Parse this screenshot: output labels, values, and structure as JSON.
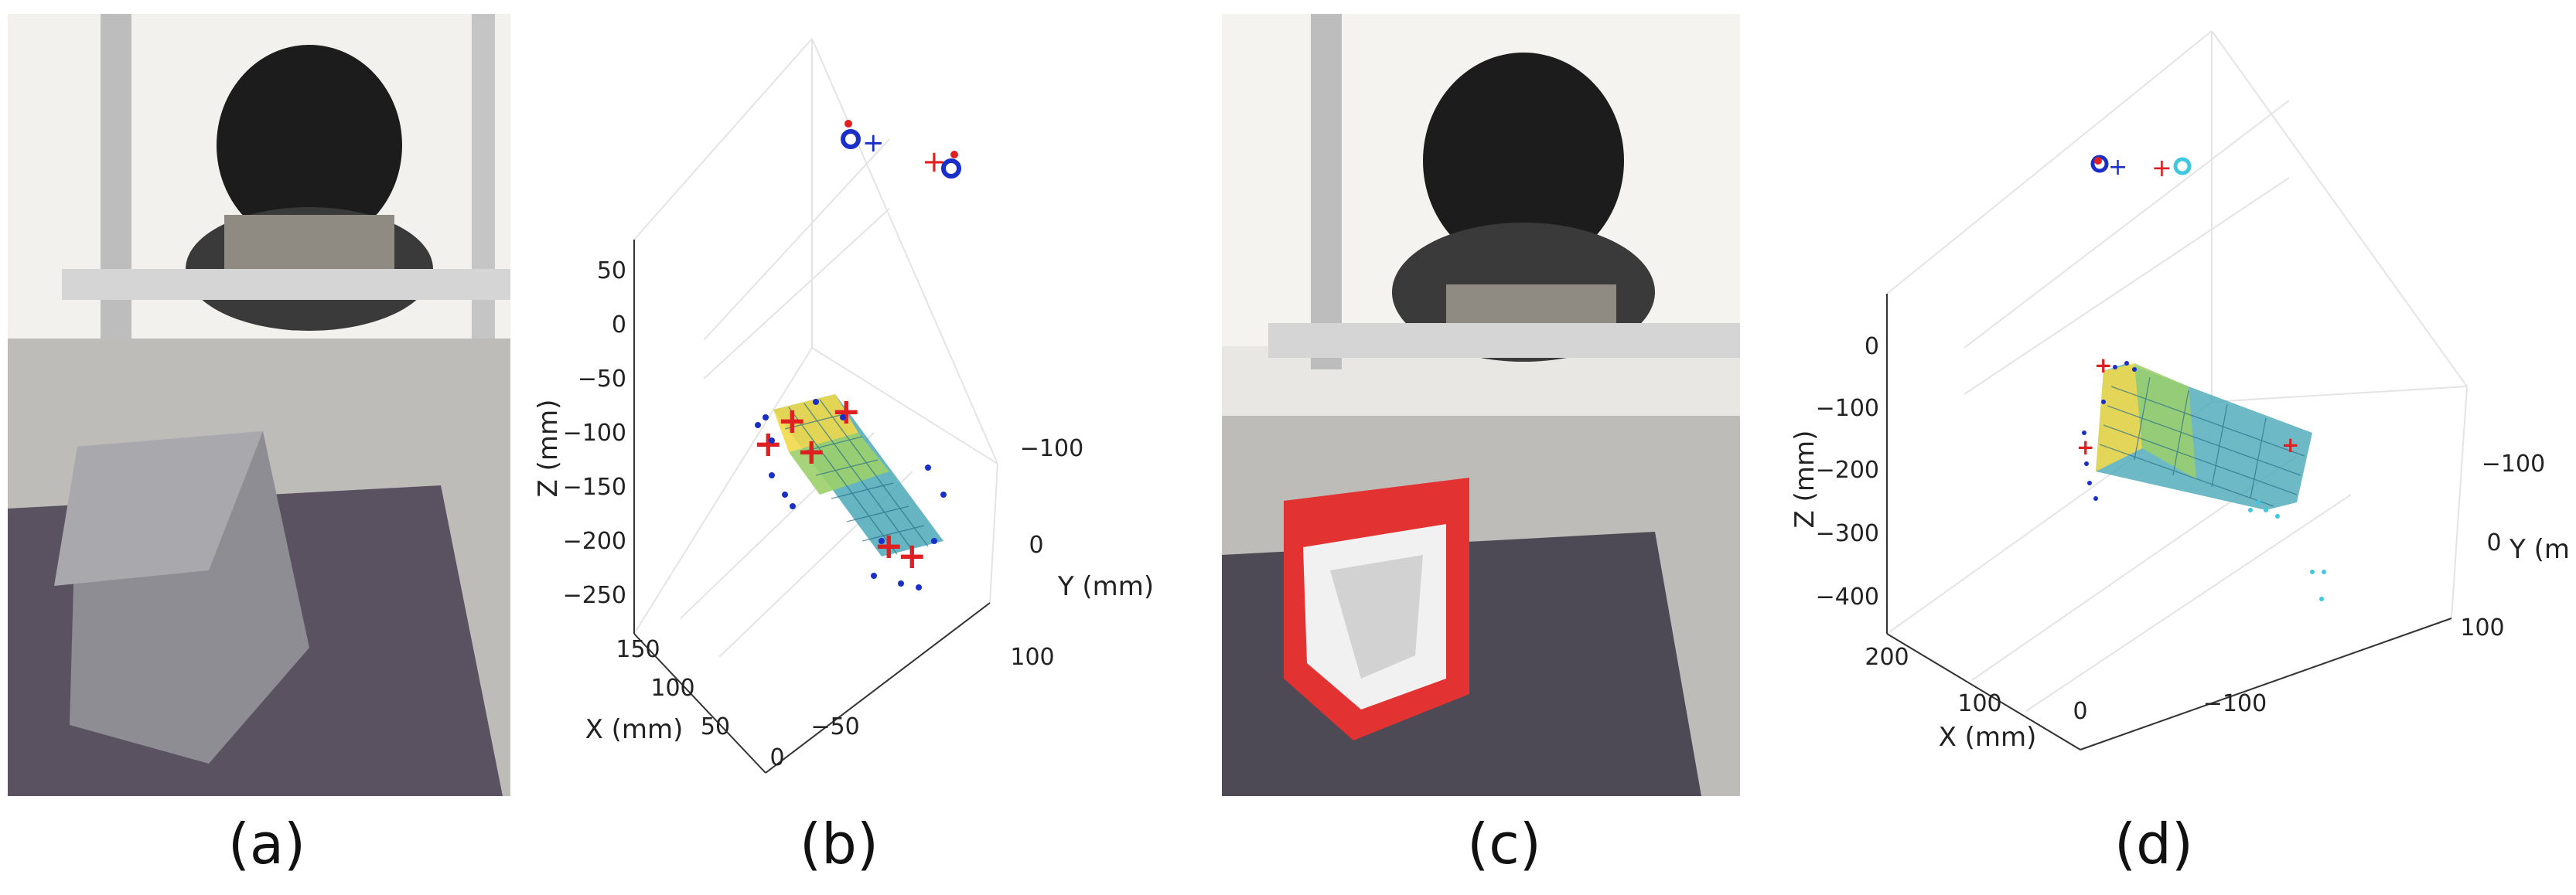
{
  "captions": {
    "a": "(a)",
    "b": "(b)",
    "c": "(c)",
    "d": "(d)"
  },
  "plot_b": {
    "xlabel": "X (mm)",
    "ylabel": "Y (mm)",
    "zlabel": "Z (mm)",
    "z_ticks": [
      "50",
      "0",
      "−50",
      "−100",
      "−150",
      "−200",
      "−250"
    ],
    "x_ticks": [
      "150",
      "100",
      "50",
      "0",
      "−50"
    ],
    "y_ticks": [
      "−100",
      "0",
      "100"
    ]
  },
  "plot_d": {
    "xlabel": "X (mm)",
    "ylabel": "Y (mm)",
    "zlabel": "Z (mm)",
    "z_ticks": [
      "0",
      "−100",
      "−200",
      "−300",
      "−400"
    ],
    "x_ticks": [
      "200",
      "100",
      "0",
      "−100"
    ],
    "y_ticks": [
      "−100",
      "0",
      "100"
    ]
  },
  "colors": {
    "red_marker": "#e02020",
    "blue_marker": "#1a2fc8",
    "cyan_marker": "#40c8e0"
  }
}
